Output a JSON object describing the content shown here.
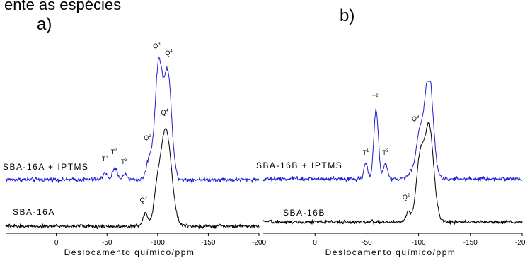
{
  "header_text": "ente as espécies",
  "chart_data": [
    {
      "type": "line",
      "panel_label": "a)",
      "xlabel": "Deslocamento químico/ppm",
      "ylabel": "",
      "xlim": [
        50,
        -200
      ],
      "xaxis_reversed": true,
      "xticks": [
        0,
        -50,
        -100,
        -150,
        -200
      ],
      "xtick_labels": [
        "0",
        "-50",
        "-100",
        "-150",
        "-200"
      ],
      "grid": false,
      "legend": "none",
      "series": [
        {
          "label": "SBA-16A + IPTMS",
          "color": "#1f1fd0",
          "noise": 1.4,
          "peaks": [
            {
              "center": -48,
              "height": 10,
              "width": 2
            },
            {
              "center": -58,
              "height": 15,
              "width": 2.5
            },
            {
              "center": -68,
              "height": 8,
              "width": 2
            },
            {
              "center": -92,
              "height": 30,
              "width": 3
            },
            {
              "center": -101,
              "height": 162,
              "width": 3.5
            },
            {
              "center": -110,
              "height": 150,
              "width": 3.8
            }
          ],
          "annotations": [
            {
              "base": "T",
              "sup": "1",
              "x": -48,
              "y": 26
            },
            {
              "base": "T",
              "sup": "2",
              "x": -57,
              "y": 36
            },
            {
              "base": "T",
              "sup": "3",
              "x": -67,
              "y": 22
            },
            {
              "base": "Q",
              "sup": "2",
              "x": -90,
              "y": 56
            },
            {
              "base": "Q",
              "sup": "3",
              "x": -99,
              "y": 186
            },
            {
              "base": "Q",
              "sup": "4",
              "x": -111,
              "y": 176
            }
          ]
        },
        {
          "label": "SBA-16A",
          "color": "#000000",
          "noise": 1.2,
          "peaks": [
            {
              "center": -88,
              "height": 18,
              "width": 2.5
            },
            {
              "center": -99,
              "height": 30,
              "width": 3
            },
            {
              "center": -108,
              "height": 138,
              "width": 5.5
            }
          ],
          "annotations": [
            {
              "base": "Q",
              "sup": "2",
              "x": -86,
              "y": 34
            },
            {
              "base": "Q",
              "sup": "4",
              "x": -107,
              "y": 158
            }
          ]
        }
      ]
    },
    {
      "type": "line",
      "panel_label": "b)",
      "xlabel": "Deslocamento químico/ppm",
      "ylabel": "",
      "xlim": [
        50,
        -200
      ],
      "xaxis_reversed": true,
      "xticks": [
        0,
        -50,
        -100,
        -150,
        -200
      ],
      "xtick_labels": [
        "0",
        "-50",
        "-100",
        "-150",
        "-200"
      ],
      "grid": false,
      "legend": "none",
      "series": [
        {
          "label": "SBA-16B + IPTMS",
          "color": "#1f1fd0",
          "noise": 1.4,
          "peaks": [
            {
              "center": -49,
              "height": 22,
              "width": 1.8
            },
            {
              "center": -59,
              "height": 98,
              "width": 2.2
            },
            {
              "center": -68,
              "height": 22,
              "width": 2
            },
            {
              "center": -93,
              "height": 8,
              "width": 3
            },
            {
              "center": -101,
              "height": 60,
              "width": 3.5
            },
            {
              "center": -110,
              "height": 150,
              "width": 4
            }
          ],
          "annotations": [
            {
              "base": "T",
              "sup": "1",
              "x": -49,
              "y": 34
            },
            {
              "base": "T",
              "sup": "2",
              "x": -58,
              "y": 112
            },
            {
              "base": "T",
              "sup": "3",
              "x": -68,
              "y": 34
            },
            {
              "base": "Q",
              "sup": "3",
              "x": -97,
              "y": 82
            }
          ]
        },
        {
          "label": "SBA-16B",
          "color": "#000000",
          "noise": 1.2,
          "peaks": [
            {
              "center": -90,
              "height": 14,
              "width": 2.5
            },
            {
              "center": -101,
              "height": 80,
              "width": 3.5
            },
            {
              "center": -110,
              "height": 136,
              "width": 4.5
            }
          ],
          "annotations": [
            {
              "base": "Q",
              "sup": "2",
              "x": -88,
              "y": 32
            }
          ]
        }
      ]
    }
  ]
}
